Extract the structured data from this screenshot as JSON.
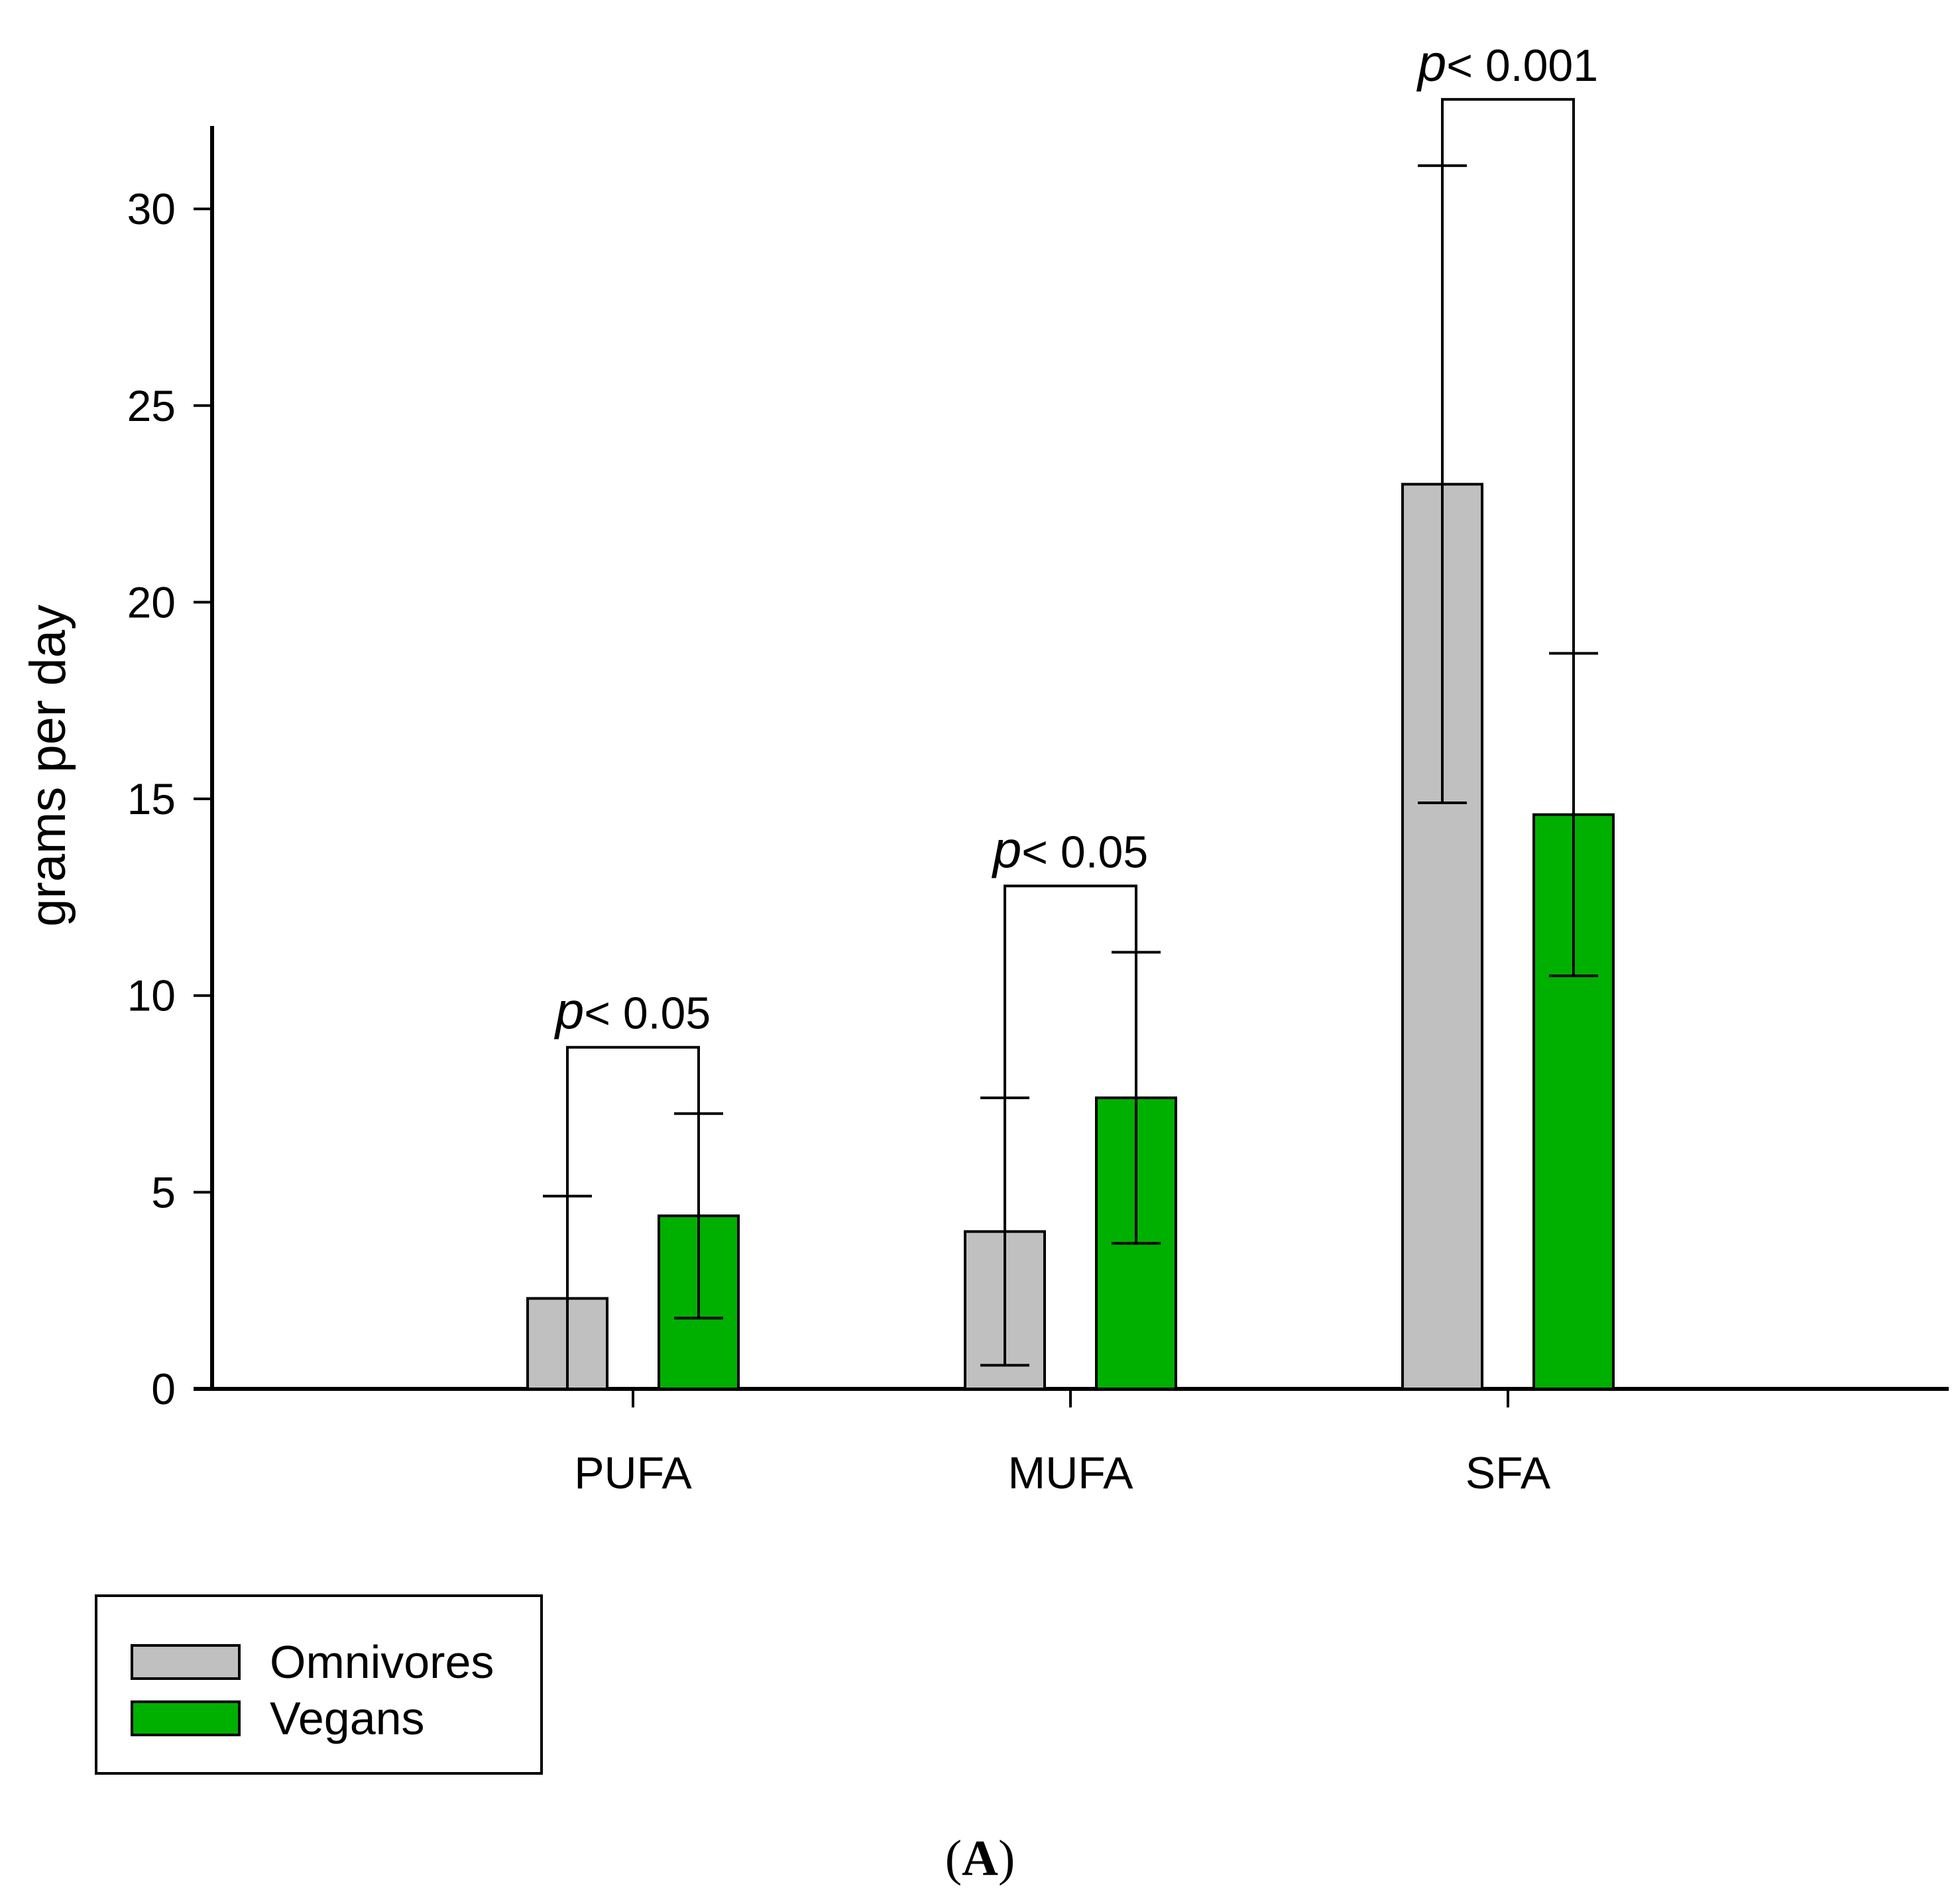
{
  "chart_data": {
    "type": "bar",
    "title": "",
    "xlabel": "",
    "ylabel": "grams per day",
    "ylim": [
      0,
      32
    ],
    "yticks": [
      0,
      5,
      10,
      15,
      20,
      25,
      30
    ],
    "categories": [
      "PUFA",
      "MUFA",
      "SFA"
    ],
    "series": [
      {
        "name": "Omnivores",
        "color": "#c0c0c0",
        "values": [
          2.3,
          4.0,
          23.0
        ],
        "errors": [
          2.6,
          3.4,
          8.1
        ]
      },
      {
        "name": "Vegans",
        "color": "#00b000",
        "values": [
          4.4,
          7.4,
          14.6
        ],
        "errors": [
          2.6,
          3.7,
          4.1
        ]
      }
    ],
    "annotations": [
      {
        "category": "PUFA",
        "p_symbol": "p",
        "text": "< 0.05"
      },
      {
        "category": "MUFA",
        "p_symbol": "p",
        "text": "< 0.05"
      },
      {
        "category": "SFA",
        "p_symbol": "p",
        "text": "< 0.001"
      }
    ],
    "legend": {
      "position": "bottom-left",
      "entries": [
        "Omnivores",
        "Vegans"
      ]
    }
  },
  "panel_label": "A"
}
